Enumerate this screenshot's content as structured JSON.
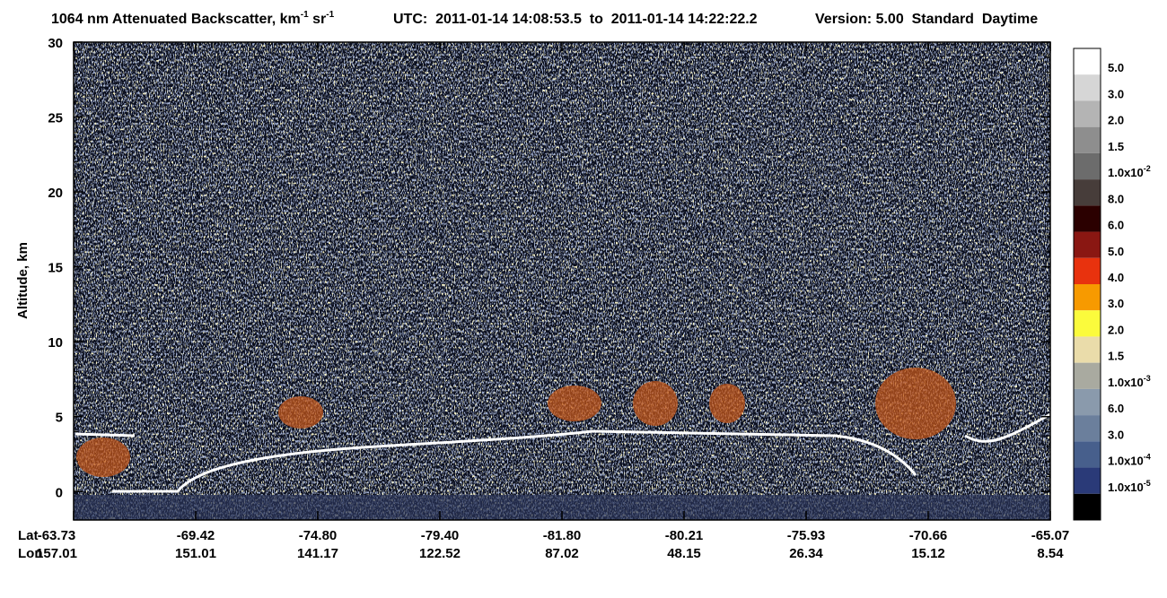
{
  "chart_data": {
    "type": "curtain",
    "title": {
      "main": "1064 nm Attenuated Backscatter, km",
      "exp1": "-1",
      "unit2": " sr",
      "exp2": "-1",
      "utc": "UTC:  2011-01-14 14:08:53.5  to  2011-01-14 14:22:22.2",
      "version": "Version: 5.00  Standard  Daytime"
    },
    "y_label": "Altitude, km",
    "ylim": [
      -1.9,
      30
    ],
    "yticks": [
      0,
      5,
      10,
      15,
      20,
      25,
      30
    ],
    "x_row_labels": {
      "lat": "Lat",
      "lon": "Lon"
    },
    "x_labels": [
      {
        "lat": "-63.73",
        "lon": "157.01"
      },
      {
        "lat": "-69.42",
        "lon": "151.01"
      },
      {
        "lat": "-74.80",
        "lon": "141.17"
      },
      {
        "lat": "-79.40",
        "lon": "122.52"
      },
      {
        "lat": "-81.80",
        "lon": "87.02"
      },
      {
        "lat": "-80.21",
        "lon": "48.15"
      },
      {
        "lat": "-75.93",
        "lon": "26.34"
      },
      {
        "lat": "-70.66",
        "lon": "15.12"
      },
      {
        "lat": "-65.07",
        "lon": "8.54"
      }
    ],
    "colorbar": {
      "colors": [
        "#ffffff",
        "#d6d6d6",
        "#b4b4b4",
        "#8e8e8e",
        "#6c6c6c",
        "#473d3a",
        "#2b0000",
        "#8a1712",
        "#e8320e",
        "#f79a00",
        "#fbfb3c",
        "#eadcaa",
        "#a9aaa0",
        "#8a9aac",
        "#6b7f9c",
        "#475f8c",
        "#2a3a78",
        "#000000"
      ],
      "labels": [
        {
          "text": "5.0"
        },
        {
          "text": "3.0"
        },
        {
          "text": "2.0"
        },
        {
          "text": "1.5"
        },
        {
          "text": "1.0x10",
          "exp": "-2"
        },
        {
          "text": "8.0"
        },
        {
          "text": "6.0"
        },
        {
          "text": "5.0"
        },
        {
          "text": "4.0"
        },
        {
          "text": "3.0"
        },
        {
          "text": "2.0"
        },
        {
          "text": "1.5"
        },
        {
          "text": "1.0x10",
          "exp": "-3"
        },
        {
          "text": "6.0"
        },
        {
          "text": "3.0"
        },
        {
          "text": "1.0x10",
          "exp": "-4"
        },
        {
          "text": "1.0x10",
          "exp": "-5"
        }
      ]
    }
  }
}
